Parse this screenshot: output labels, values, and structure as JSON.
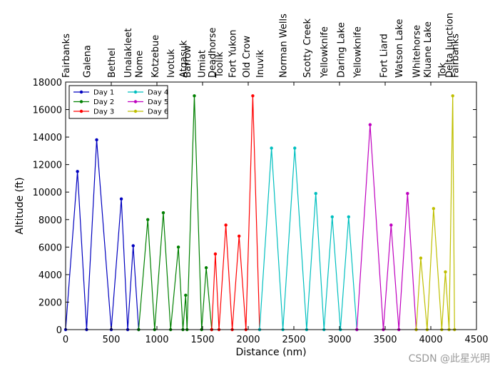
{
  "chart_data": {
    "type": "line",
    "title": "",
    "xlabel": "Distance (nm)",
    "ylabel": "Altitude (ft)",
    "xlim": [
      0,
      4500
    ],
    "ylim": [
      0,
      18000
    ],
    "xticks": [
      0,
      500,
      1000,
      1500,
      2000,
      2500,
      3000,
      3500,
      4000,
      4500
    ],
    "yticks": [
      0,
      2000,
      4000,
      6000,
      8000,
      10000,
      12000,
      14000,
      16000,
      18000
    ],
    "legend": {
      "placement": "top-left",
      "columns": 2
    },
    "waypoints": [
      {
        "name": "Fairbanks",
        "x": 0
      },
      {
        "name": "Galena",
        "x": 230
      },
      {
        "name": "Bethel",
        "x": 500
      },
      {
        "name": "Unalakleet",
        "x": 680
      },
      {
        "name": "Nome",
        "x": 800
      },
      {
        "name": "Kotzebue",
        "x": 975
      },
      {
        "name": "Ivotuk",
        "x": 1150
      },
      {
        "name": "Atqasuk",
        "x": 1285
      },
      {
        "name": "Barrow",
        "x": 1330
      },
      {
        "name": "Umiat",
        "x": 1490
      },
      {
        "name": "Deadhorse",
        "x": 1600
      },
      {
        "name": "Toolik",
        "x": 1680
      },
      {
        "name": "Fort Yukon",
        "x": 1825
      },
      {
        "name": "Old Crow",
        "x": 1975
      },
      {
        "name": "Inuvik",
        "x": 2125
      },
      {
        "name": "Norman Wells",
        "x": 2380
      },
      {
        "name": "Scotty Creek",
        "x": 2640
      },
      {
        "name": "Yellowknife",
        "x": 2830
      },
      {
        "name": "Daring Lake",
        "x": 3010
      },
      {
        "name": "Yellowknife",
        "x": 3190
      },
      {
        "name": "Fort Liard",
        "x": 3480
      },
      {
        "name": "Watson Lake",
        "x": 3650
      },
      {
        "name": "Whitehorse",
        "x": 3840
      },
      {
        "name": "Kluane Lake",
        "x": 3960
      },
      {
        "name": "Tok",
        "x": 4120
      },
      {
        "name": "Delta Junction",
        "x": 4200
      },
      {
        "name": "Fairbanks",
        "x": 4260
      }
    ],
    "series": [
      {
        "name": "Day 1",
        "color": "#0000bf",
        "x": [
          0,
          130,
          230,
          340,
          500,
          610,
          680,
          740,
          800
        ],
        "y": [
          0,
          11500,
          0,
          13800,
          0,
          9500,
          0,
          6100,
          0
        ]
      },
      {
        "name": "Day 2",
        "color": "#008000",
        "x": [
          800,
          900,
          975,
          1070,
          1150,
          1235,
          1285,
          1315,
          1330,
          1410,
          1490,
          1540,
          1600
        ],
        "y": [
          0,
          8000,
          0,
          8500,
          0,
          6000,
          0,
          2500,
          0,
          17000,
          0,
          4500,
          0
        ]
      },
      {
        "name": "Day 3",
        "color": "#ff0000",
        "x": [
          1600,
          1640,
          1680,
          1755,
          1825,
          1900,
          1975,
          2050,
          2125
        ],
        "y": [
          0,
          5500,
          0,
          7600,
          0,
          6800,
          0,
          17000,
          0
        ]
      },
      {
        "name": "Day 4",
        "color": "#00bfbf",
        "x": [
          2125,
          2255,
          2380,
          2510,
          2640,
          2740,
          2830,
          2920,
          3010,
          3100,
          3190
        ],
        "y": [
          0,
          13200,
          0,
          13200,
          0,
          9900,
          0,
          8200,
          0,
          8200,
          0
        ]
      },
      {
        "name": "Day 5",
        "color": "#bf00bf",
        "x": [
          3190,
          3335,
          3480,
          3565,
          3650,
          3745,
          3840
        ],
        "y": [
          0,
          14900,
          0,
          7600,
          0,
          9900,
          0
        ]
      },
      {
        "name": "Day 6",
        "color": "#bfbf00",
        "x": [
          3840,
          3890,
          3960,
          4030,
          4120,
          4160,
          4200,
          4240,
          4260
        ],
        "y": [
          0,
          5200,
          0,
          8800,
          0,
          4200,
          0,
          17000,
          0
        ]
      }
    ]
  },
  "watermark": "CSDN @此星光明"
}
